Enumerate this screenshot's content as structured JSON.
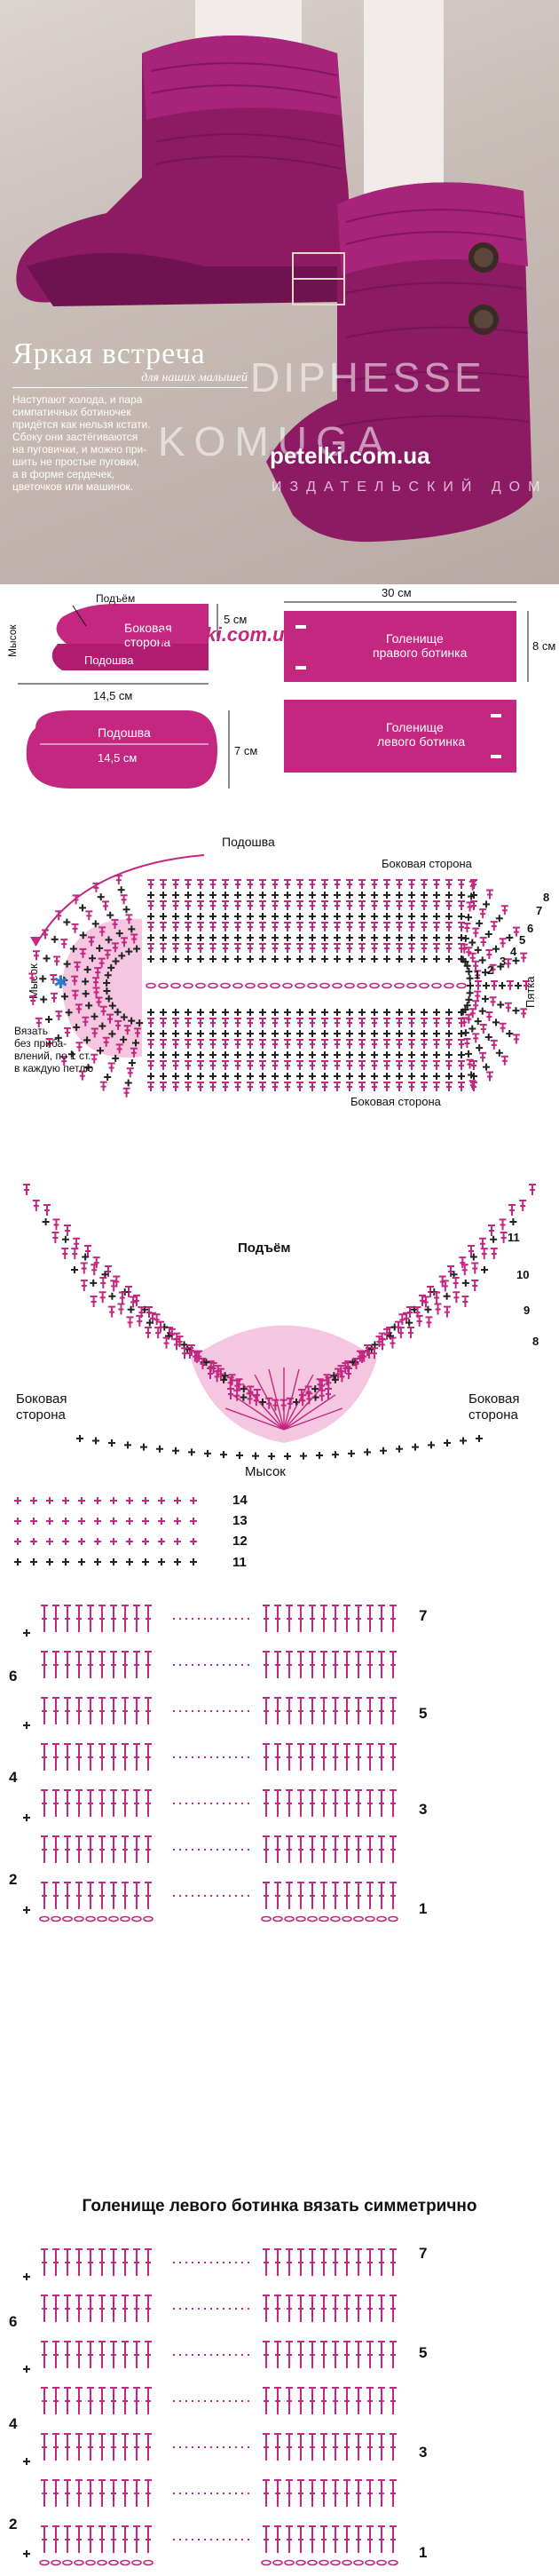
{
  "photo": {
    "title": "Яркая встреча",
    "subtitle": "для наших малышей",
    "text_lines": [
      "Наступают холода, и пара",
      "симпатичных ботиночек",
      "придётся как нельзя кстати.",
      "Сбоку они застёгиваются",
      "на пуговички, и можно при-",
      "шить не простые пуговки,",
      "а в форме сердечек,",
      "цветочков или машинок."
    ],
    "brand_line1": "DIPHESSE",
    "brand_line2": "KOMUGA",
    "brand_line3": "ИЗДАТЕЛЬСКИЙ ДОМ",
    "site": "petelki.com.ua"
  },
  "schematics": {
    "podyem": "Подъём",
    "bokovaya": [
      "Боковая",
      "сторона"
    ],
    "mysok": "Мысок",
    "podoshva": "Подошва",
    "dim_5": "5 см",
    "dim_145": "14,5 см",
    "dim_7": "7 см",
    "dim_30": "30 см",
    "dim_8": "8 см",
    "right_boot": [
      "Голенище",
      "правого ботинка"
    ],
    "left_boot": [
      "Голенище",
      "левого ботинка"
    ],
    "watermark": "petelki.com.ua"
  },
  "sole_chart": {
    "podoshva": "Подошва",
    "bokovaya_top": "Боковая сторона",
    "bokovaya_bottom": "Боковая сторона",
    "mysok": "Мысок",
    "pyatka": "Пятка",
    "note": [
      "Вязать",
      "без приба-",
      "влений, по 1 ст.",
      "в каждую петлю"
    ],
    "row_numbers": [
      "1",
      "2",
      "3",
      "4",
      "5",
      "6",
      "7",
      "8"
    ]
  },
  "toe_chart": {
    "podyem": "Подъём",
    "bokovaya_left": [
      "Боковая",
      "сторона"
    ],
    "bokovaya_right": [
      "Боковая",
      "сторона"
    ],
    "mysok": "Мысок",
    "row_numbers": [
      "8",
      "9",
      "10",
      "11"
    ]
  },
  "rows_chart": {
    "row_numbers": [
      "11",
      "12",
      "13",
      "14"
    ]
  },
  "cuff_right": {
    "left_numbers": [
      "2",
      "4",
      "6"
    ],
    "right_numbers": [
      "1",
      "3",
      "5",
      "7"
    ]
  },
  "heading": "Голенище левого ботинка вязать симметрично",
  "cuff_left": {
    "left_numbers": [
      "2",
      "4",
      "6"
    ],
    "right_numbers": [
      "1",
      "3",
      "5",
      "7"
    ]
  },
  "colors": {
    "magenta": "#c3277f",
    "pink_fill": "#f4c6df",
    "dark": "#222222"
  }
}
